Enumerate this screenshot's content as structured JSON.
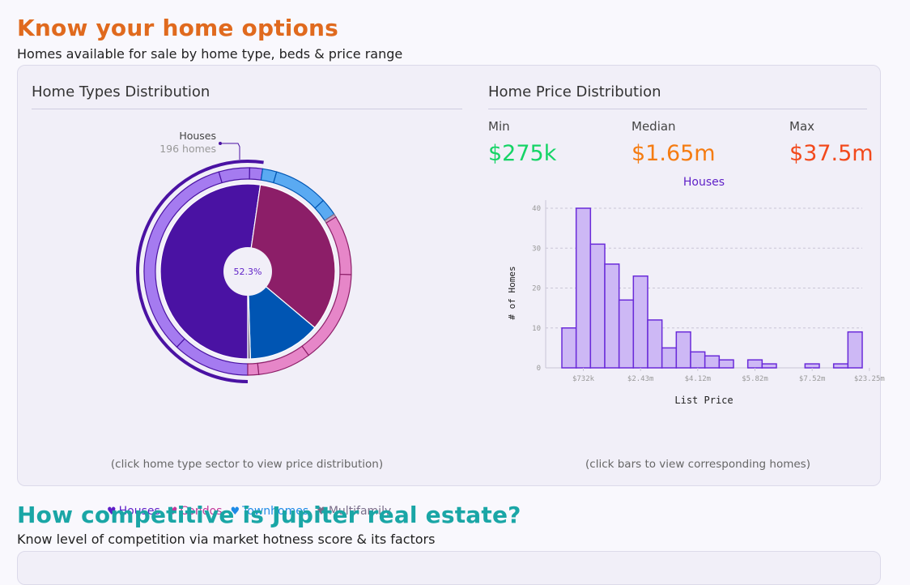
{
  "section1": {
    "title": "Know your home options",
    "subtitle": "Homes available for sale by home type, beds & price range"
  },
  "home_types": {
    "title": "Home Types Distribution",
    "callout": {
      "label": "Houses",
      "count": "196 homes"
    },
    "center_label": "52.3%",
    "legend": [
      {
        "label": "Houses",
        "color": "#5e1fc7",
        "icon": "tshirt-icon"
      },
      {
        "label": "Condos",
        "color": "#c1379a",
        "icon": "tshirt-icon"
      },
      {
        "label": "Townhomes",
        "color": "#1d8ae6",
        "icon": "tshirt-icon"
      },
      {
        "label": "Multifamily",
        "color": "#7a6e8a",
        "icon": "tshirt-icon"
      }
    ],
    "hint": "(click home type sector to view price distribution)"
  },
  "price_dist": {
    "title": "Home Price Distribution",
    "min_label": "Min",
    "min_value": "$275k",
    "min_color": "#16d466",
    "median_label": "Median",
    "median_value": "$1.65m",
    "median_color": "#f57c12",
    "max_label": "Max",
    "max_value": "$37.5m",
    "max_color": "#f2491c",
    "hint": "(click bars to view corresponding homes)"
  },
  "section2": {
    "title": "How competitive is Jupiter real estate?",
    "subtitle": "Know level of competition via market hotness score & its factors"
  },
  "chart_data": [
    {
      "type": "pie",
      "title": "",
      "inner": [
        {
          "name": "Houses",
          "value": 52.3,
          "color": "#4a12a3"
        },
        {
          "name": "Condos",
          "value": 33.8,
          "color": "#8c1e68"
        },
        {
          "name": "Townhomes",
          "value": 13.4,
          "color": "#0055b3"
        },
        {
          "name": "Multifamily",
          "value": 0.5,
          "color": "#7a6e8a"
        }
      ],
      "outer_ring_colors": {
        "Houses": "#a57bf0",
        "Condos": "#e686c8",
        "Townhomes": "#5aaaf2",
        "Multifamily": "#c9a0c0"
      },
      "outer": [
        {
          "group": "Houses",
          "value": 12
        },
        {
          "group": "Houses",
          "value": 33.5
        },
        {
          "group": "Houses",
          "value": 4.8
        },
        {
          "group": "Houses",
          "value": 2
        },
        {
          "group": "Townhomes",
          "value": 2.2
        },
        {
          "group": "Townhomes",
          "value": 8.5
        },
        {
          "group": "Townhomes",
          "value": 2.7
        },
        {
          "group": "Multifamily",
          "value": 0.5
        },
        {
          "group": "Condos",
          "value": 9.3
        },
        {
          "group": "Condos",
          "value": 14.5
        },
        {
          "group": "Condos",
          "value": 8.3
        },
        {
          "group": "Condos",
          "value": 1.7
        }
      ]
    },
    {
      "type": "bar",
      "title": "Houses",
      "xlabel": "List Price",
      "ylabel": "# of Homes",
      "ylim": [
        0,
        40
      ],
      "yticks": [
        0,
        10,
        20,
        30,
        40
      ],
      "xtick_labels": [
        "$732k",
        "$2.43m",
        "$4.12m",
        "$5.82m",
        "$7.52m",
        "$23.25m"
      ],
      "xtick_bins": [
        1.5,
        5.5,
        9.5,
        13.5,
        17.5,
        21.5
      ],
      "values": [
        10,
        40,
        31,
        26,
        17,
        23,
        12,
        5,
        9,
        4,
        3,
        2,
        0,
        2,
        1,
        0,
        0,
        1,
        0,
        1,
        9
      ],
      "bar_fill": "#cdb8f5",
      "bar_stroke": "#6a2bd9",
      "grid": true
    }
  ]
}
